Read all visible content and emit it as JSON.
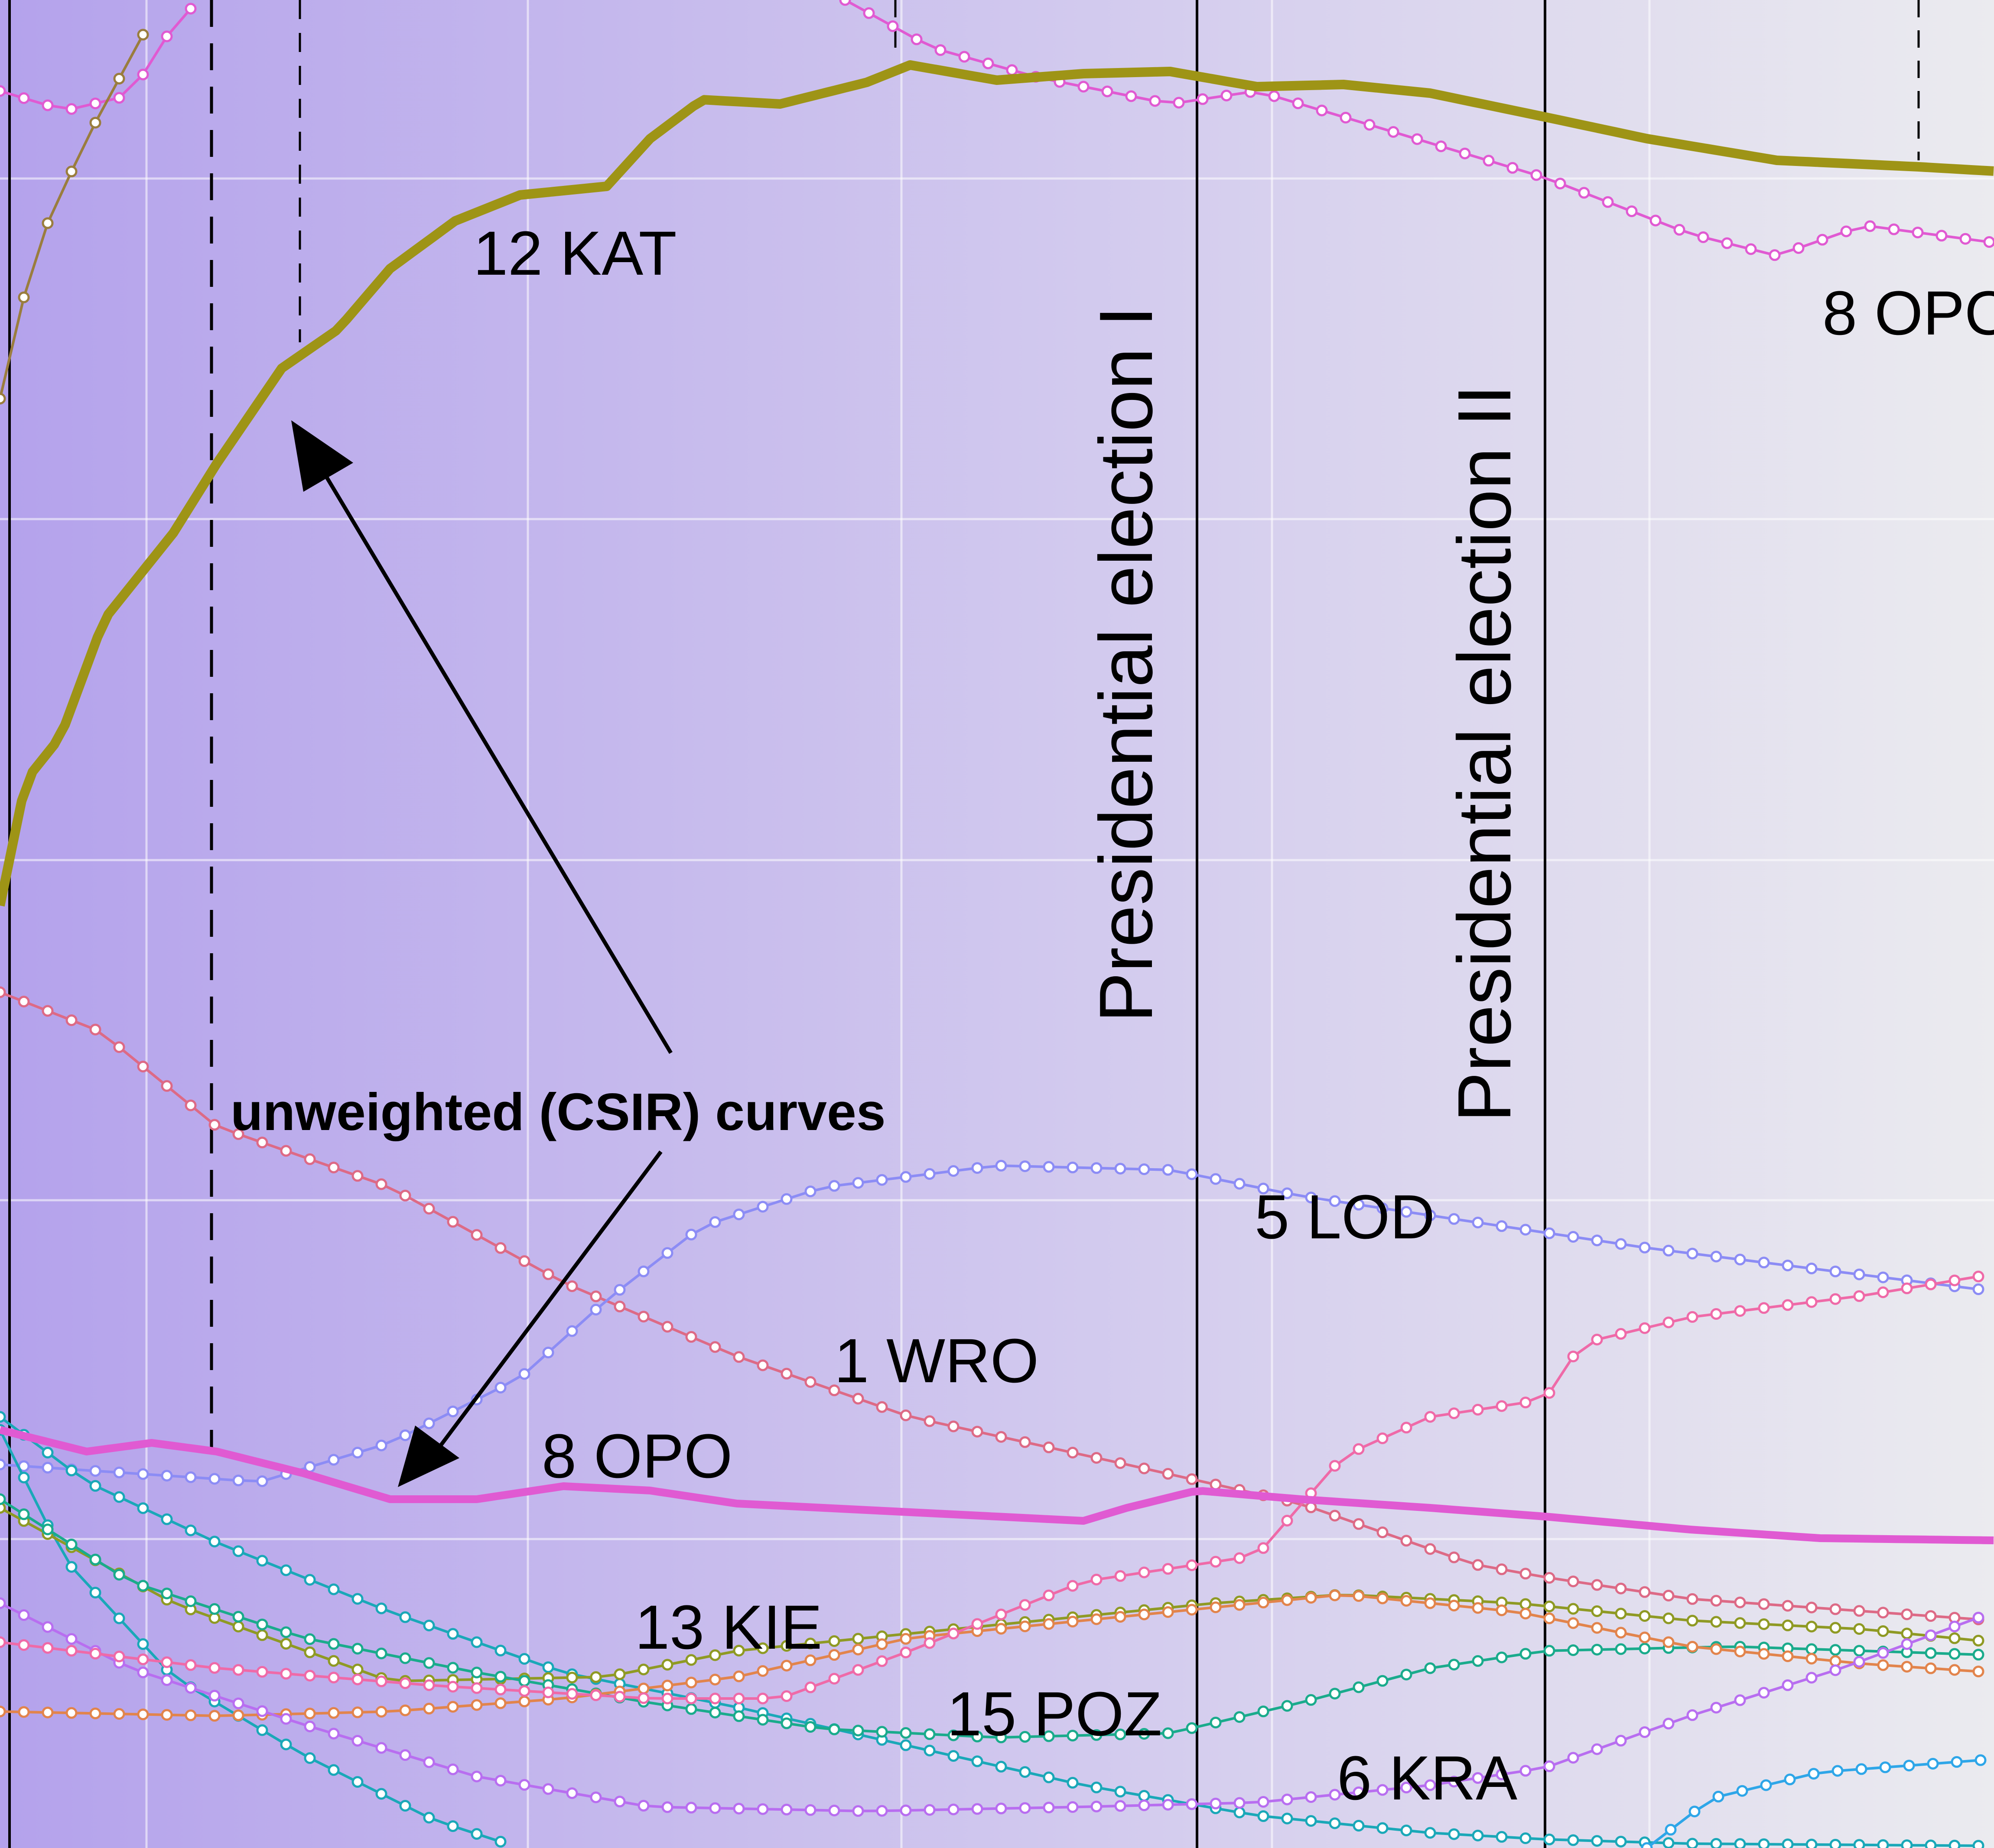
{
  "chart_data": {
    "type": "line",
    "colors": {
      "background_start": "#b4a2ec",
      "background_end": "#ebebef",
      "grid": "#ffffff",
      "kat": "#9e9416",
      "opo": "#e05ad2",
      "wro": "#dd6a86",
      "lod": "#8c8cf5",
      "kie": "#1aa8b8",
      "poz": "#8f9a24",
      "kra": "#1aab8c",
      "violet": "#b86ef0",
      "orange": "#e2844c",
      "pink": "#ef6aa8",
      "blue": "#2ea6e8"
    },
    "annotations": {
      "event_1": "Presidential election I",
      "event_2": "Presidential election II",
      "callout": "unweighted (CSIR) curves"
    },
    "series_labels": {
      "kat": "12 KAT",
      "opo_weighted": "8 OPO",
      "opo_unweighted": "8 OPO",
      "wro": "1 WRO",
      "lod": "5 LOD",
      "kie": "13 KIE",
      "poz": "15 POZ",
      "kra": "6 KRA"
    }
  }
}
